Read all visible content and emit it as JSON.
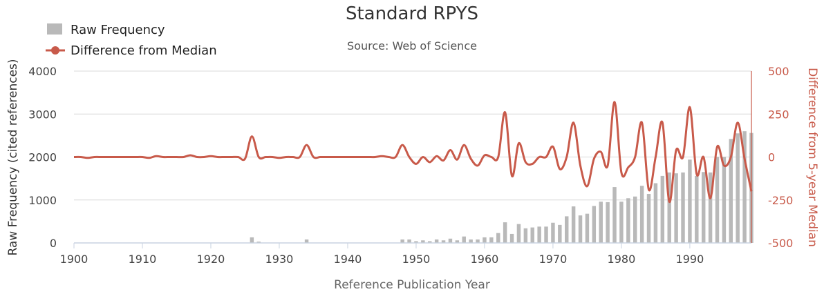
{
  "chart_data": {
    "type": "bar+line",
    "title": "Standard RPYS",
    "subtitle": "Source: Web of Science",
    "xlabel": "Reference Publication Year",
    "ylabel_left": "Raw Frequency (cited references)",
    "ylabel_right": "Difference from 5-year Median",
    "xlim": [
      1900,
      1999
    ],
    "ylim_left": [
      0,
      4000
    ],
    "ylim_right": [
      -500,
      500
    ],
    "x_ticks": [
      "1900",
      "1910",
      "1920",
      "1930",
      "1940",
      "1950",
      "1960",
      "1970",
      "1980",
      "1990"
    ],
    "left_ticks": [
      "0",
      "1000",
      "2000",
      "3000",
      "4000"
    ],
    "right_ticks": [
      "500",
      "250",
      "0",
      "-250",
      "-500"
    ],
    "legend_position": "top-left",
    "grid": true,
    "colors": {
      "bar": "#b9b9b9",
      "line": "#c85a4a",
      "grid": "#d8d8d8"
    },
    "x": [
      1900,
      1901,
      1902,
      1903,
      1904,
      1905,
      1906,
      1907,
      1908,
      1909,
      1910,
      1911,
      1912,
      1913,
      1914,
      1915,
      1916,
      1917,
      1918,
      1919,
      1920,
      1921,
      1922,
      1923,
      1924,
      1925,
      1926,
      1927,
      1928,
      1929,
      1930,
      1931,
      1932,
      1933,
      1934,
      1935,
      1936,
      1937,
      1938,
      1939,
      1940,
      1941,
      1942,
      1943,
      1944,
      1945,
      1946,
      1947,
      1948,
      1949,
      1950,
      1951,
      1952,
      1953,
      1954,
      1955,
      1956,
      1957,
      1958,
      1959,
      1960,
      1961,
      1962,
      1963,
      1964,
      1965,
      1966,
      1967,
      1968,
      1969,
      1970,
      1971,
      1972,
      1973,
      1974,
      1975,
      1976,
      1977,
      1978,
      1979,
      1980,
      1981,
      1982,
      1983,
      1984,
      1985,
      1986,
      1987,
      1988,
      1989,
      1990,
      1991,
      1992,
      1993,
      1994,
      1995,
      1996,
      1997,
      1998,
      1999
    ],
    "series": [
      {
        "name": "Raw Frequency",
        "type": "bar",
        "values": [
          0,
          0,
          0,
          0,
          0,
          0,
          0,
          0,
          0,
          0,
          0,
          0,
          0,
          0,
          0,
          0,
          0,
          0,
          0,
          0,
          0,
          0,
          0,
          0,
          0,
          0,
          130,
          30,
          0,
          0,
          0,
          0,
          0,
          0,
          80,
          0,
          0,
          0,
          0,
          0,
          0,
          0,
          0,
          0,
          0,
          0,
          0,
          0,
          80,
          80,
          40,
          60,
          40,
          80,
          60,
          100,
          60,
          150,
          80,
          80,
          130,
          130,
          230,
          480,
          210,
          440,
          340,
          360,
          380,
          380,
          470,
          420,
          620,
          850,
          640,
          680,
          860,
          960,
          950,
          1300,
          960,
          1040,
          1080,
          1330,
          1140,
          1390,
          1560,
          1640,
          1620,
          1640,
          1940,
          1560,
          1650,
          1640,
          2000,
          2000,
          2420,
          2550,
          2600,
          2560
        ]
      },
      {
        "name": "Difference from Median",
        "type": "line",
        "values": [
          0,
          0,
          -5,
          0,
          0,
          0,
          0,
          0,
          0,
          0,
          0,
          -5,
          5,
          0,
          0,
          0,
          0,
          10,
          0,
          0,
          5,
          0,
          0,
          0,
          0,
          -10,
          120,
          0,
          0,
          0,
          -5,
          0,
          0,
          0,
          70,
          0,
          0,
          0,
          0,
          0,
          0,
          0,
          0,
          0,
          0,
          5,
          0,
          0,
          70,
          0,
          -40,
          0,
          -30,
          5,
          -20,
          40,
          -15,
          70,
          -10,
          -50,
          10,
          0,
          0,
          260,
          -110,
          80,
          -30,
          -40,
          0,
          0,
          60,
          -70,
          0,
          200,
          -50,
          -170,
          -10,
          30,
          -50,
          320,
          -90,
          -60,
          0,
          200,
          -190,
          0,
          200,
          -260,
          40,
          0,
          290,
          -100,
          0,
          -240,
          60,
          -50,
          0,
          200,
          -10,
          -200
        ]
      }
    ]
  }
}
